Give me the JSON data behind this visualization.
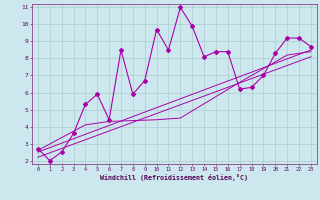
{
  "xlabel": "Windchill (Refroidissement éolien,°C)",
  "background_color": "#cce8ee",
  "grid_color": "#aacccc",
  "line_color": "#aa00aa",
  "marker_color": "#aa00aa",
  "series1_x": [
    0,
    1,
    2,
    3,
    4,
    5,
    6,
    7,
    8,
    9,
    10,
    11,
    12,
    13,
    14,
    15,
    16,
    17,
    18,
    19,
    20,
    21,
    22,
    23
  ],
  "series1_y": [
    2.7,
    2.0,
    2.5,
    3.6,
    5.3,
    5.9,
    4.4,
    8.5,
    5.9,
    6.7,
    9.7,
    8.5,
    11.0,
    9.9,
    8.1,
    8.4,
    8.4,
    6.2,
    6.3,
    7.0,
    8.3,
    9.2,
    9.2,
    8.7
  ],
  "series2_x": [
    0,
    23
  ],
  "series2_y": [
    2.5,
    8.5
  ],
  "series3_x": [
    0,
    23
  ],
  "series3_y": [
    2.2,
    8.1
  ],
  "series4_x": [
    0,
    4,
    6,
    10,
    12,
    17,
    21,
    23
  ],
  "series4_y": [
    2.6,
    4.1,
    4.3,
    4.4,
    4.5,
    6.6,
    8.2,
    8.4
  ],
  "xlim": [
    -0.5,
    23.5
  ],
  "ylim": [
    1.8,
    11.2
  ],
  "xticks": [
    0,
    1,
    2,
    3,
    4,
    5,
    6,
    7,
    8,
    9,
    10,
    11,
    12,
    13,
    14,
    15,
    16,
    17,
    18,
    19,
    20,
    21,
    22,
    23
  ],
  "yticks": [
    2,
    3,
    4,
    5,
    6,
    7,
    8,
    9,
    10,
    11
  ]
}
